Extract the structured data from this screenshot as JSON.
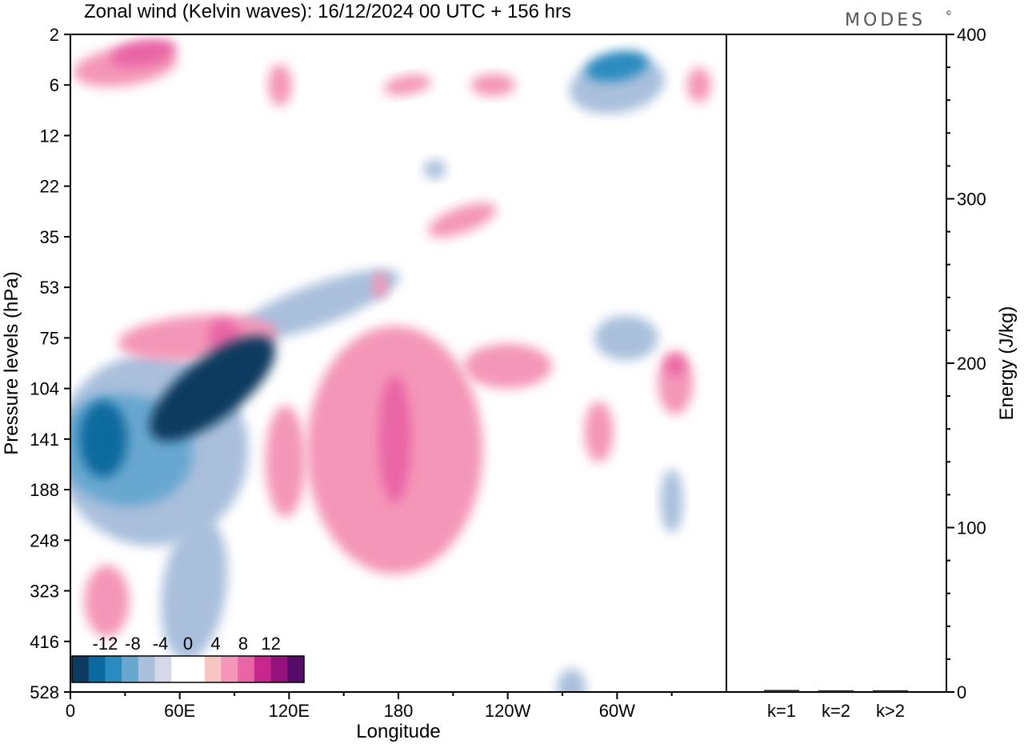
{
  "title": "Zonal wind (Kelvin waves):  16/12/2024  00 UTC  + 156 hrs",
  "brand": "MODES",
  "brand_mark": "©",
  "colors": {
    "neg": [
      "#0c3b5f",
      "#0a6a9e",
      "#2a8bc0",
      "#68a7d0",
      "#a9bfdc",
      "#d4d8e8"
    ],
    "zero": "#ffffff",
    "pos": [
      "#f7c6c3",
      "#f496b7",
      "#e965a5",
      "#c8288d",
      "#96117b",
      "#560b6b"
    ]
  },
  "chart_data": [
    {
      "type": "heatmap",
      "title": "Zonal wind (Kelvin waves):  16/12/2024  00 UTC  + 156 hrs",
      "xlabel": "Longitude",
      "ylabel": "Pressure levels (hPa)",
      "x_ticks": [
        "0",
        "60E",
        "120E",
        "180",
        "120W",
        "60W"
      ],
      "x_tick_lon": [
        0,
        60,
        120,
        180,
        240,
        300
      ],
      "xlim": [
        0,
        360
      ],
      "y_ticks": [
        "2",
        "6",
        "12",
        "22",
        "35",
        "53",
        "75",
        "104",
        "141",
        "188",
        "248",
        "323",
        "416",
        "528"
      ],
      "y_levels": [
        2,
        6,
        12,
        22,
        35,
        53,
        75,
        104,
        141,
        188,
        248,
        323,
        416,
        528
      ],
      "y_scale": "categorical levels, 2 hPa at top",
      "colorbar_labels": [
        "-12",
        "-8",
        "-4",
        "0",
        "4",
        "8",
        "12"
      ],
      "colorbar_values": [
        -12,
        -8,
        -4,
        0,
        4,
        8,
        12
      ],
      "features": [
        {
          "sign": "neg",
          "max": 12,
          "lon": 75,
          "level": 104,
          "desc": "tilted easterly band"
        },
        {
          "sign": "neg",
          "max": 10,
          "lon": 18,
          "level": 141
        },
        {
          "sign": "neg",
          "max": 8,
          "lon": 300,
          "level": 4
        },
        {
          "sign": "pos",
          "max": 7,
          "lon": 40,
          "level": 3
        },
        {
          "sign": "pos",
          "max": 5,
          "lon": 85,
          "level": 75
        },
        {
          "sign": "pos",
          "max": 5,
          "lon": 178,
          "level": 141
        },
        {
          "sign": "pos",
          "max": 4,
          "lon": 332,
          "level": 90
        }
      ]
    },
    {
      "type": "bar",
      "categories": [
        "k=1",
        "k=2",
        "k>2"
      ],
      "values": [
        0.5,
        0.3,
        0.3
      ],
      "ylabel": "Energy (J/kg)",
      "ylim": [
        0,
        400
      ],
      "y_ticks": [
        "0",
        "100",
        "200",
        "300",
        "400"
      ],
      "y_tick_values": [
        0,
        100,
        200,
        300,
        400
      ],
      "y_minor_step": 20
    }
  ]
}
